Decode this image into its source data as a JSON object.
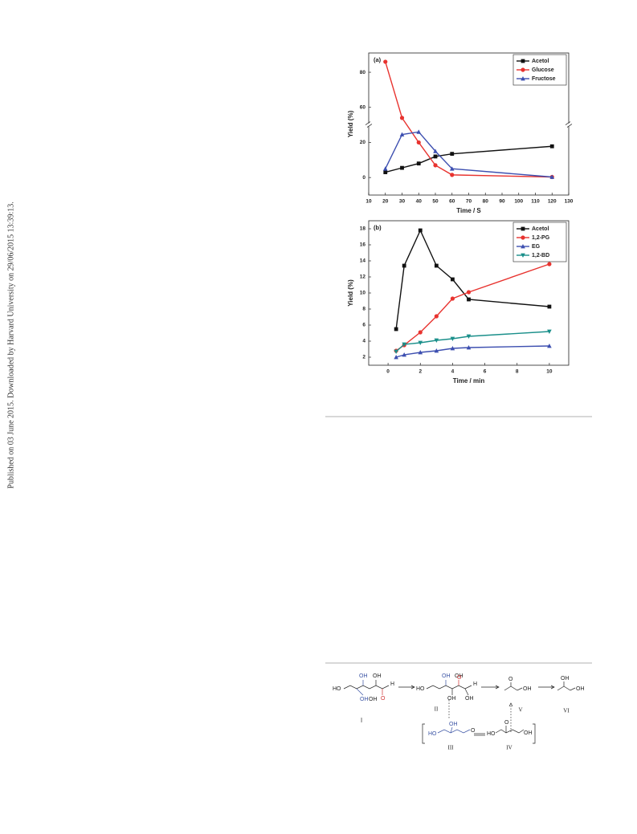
{
  "sidebar": "Published on 03 June 2015. Downloaded by Harvard University on 29/06/2015 13:39:13.",
  "chart_data": [
    {
      "type": "line",
      "annotation": "(a)",
      "x_label": "Time / S",
      "y_label": "Yield (%)",
      "xlim": [
        10,
        130
      ],
      "xticks": [
        10,
        20,
        30,
        40,
        50,
        60,
        70,
        80,
        90,
        100,
        110,
        120,
        130
      ],
      "ylim": [
        -10,
        91
      ],
      "yticks": [
        0,
        20,
        60,
        80
      ],
      "ybreak": [
        30,
        50
      ],
      "grid": false,
      "legend": "upper right",
      "series": [
        {
          "name": "Acetol",
          "color": "#111111",
          "marker": "square",
          "x": [
            20,
            30,
            40,
            50,
            60,
            120
          ],
          "values": [
            3,
            5.5,
            8,
            12,
            13.5,
            17.8
          ]
        },
        {
          "name": "Glucose",
          "color": "#e8332f",
          "marker": "circle",
          "x": [
            20,
            30,
            40,
            50,
            60,
            120
          ],
          "values": [
            86,
            54,
            20,
            7,
            1.5,
            0.3
          ]
        },
        {
          "name": "Fructose",
          "color": "#3d4fb0",
          "marker": "triangle-up",
          "x": [
            20,
            30,
            40,
            50,
            60,
            120
          ],
          "values": [
            5,
            24.5,
            26,
            15,
            5,
            0.3
          ]
        }
      ]
    },
    {
      "type": "line",
      "annotation": "(b)",
      "x_label": "Time / min",
      "y_label": "Yield (%)",
      "xlim": [
        -1.2,
        11.2
      ],
      "xticks": [
        0,
        2,
        4,
        6,
        8,
        10
      ],
      "ylim": [
        1,
        19
      ],
      "yticks": [
        2,
        4,
        6,
        8,
        10,
        12,
        14,
        16,
        18
      ],
      "grid": false,
      "legend": "upper right",
      "series": [
        {
          "name": "Acetol",
          "color": "#111111",
          "marker": "square",
          "x": [
            0.5,
            1,
            2,
            3,
            4,
            5,
            10
          ],
          "values": [
            5.5,
            13.4,
            17.8,
            13.4,
            11.7,
            9.2,
            8.3
          ]
        },
        {
          "name": "1,2-PG",
          "color": "#e8332f",
          "marker": "circle",
          "x": [
            0.5,
            1,
            2,
            3,
            4,
            5,
            10
          ],
          "values": [
            2.8,
            3.5,
            5.1,
            7.1,
            9.3,
            10.1,
            13.6
          ]
        },
        {
          "name": "EG",
          "color": "#3d4fb0",
          "marker": "triangle-up",
          "x": [
            0.5,
            1,
            2,
            3,
            4,
            5,
            10
          ],
          "values": [
            2,
            2.3,
            2.6,
            2.8,
            3.1,
            3.2,
            3.4
          ]
        },
        {
          "name": "1,2-BD",
          "color": "#1a8f8a",
          "marker": "triangle-down",
          "x": [
            0.5,
            1,
            2,
            3,
            4,
            5,
            10
          ],
          "values": [
            2.7,
            3.6,
            3.8,
            4.1,
            4.3,
            4.6,
            5.2
          ]
        }
      ]
    }
  ],
  "scheme": {
    "labels": [
      "HO",
      "OH",
      "OH",
      "OH",
      "OH",
      "O",
      "H",
      "I",
      "HO",
      "OH",
      "OH",
      "OH",
      "OH",
      "O",
      "H",
      "II",
      "O",
      "OH",
      "V",
      "OH",
      "OH",
      "VI",
      "OH",
      "HO",
      "O",
      "III",
      "HO",
      "O",
      "OH",
      "IV"
    ]
  }
}
